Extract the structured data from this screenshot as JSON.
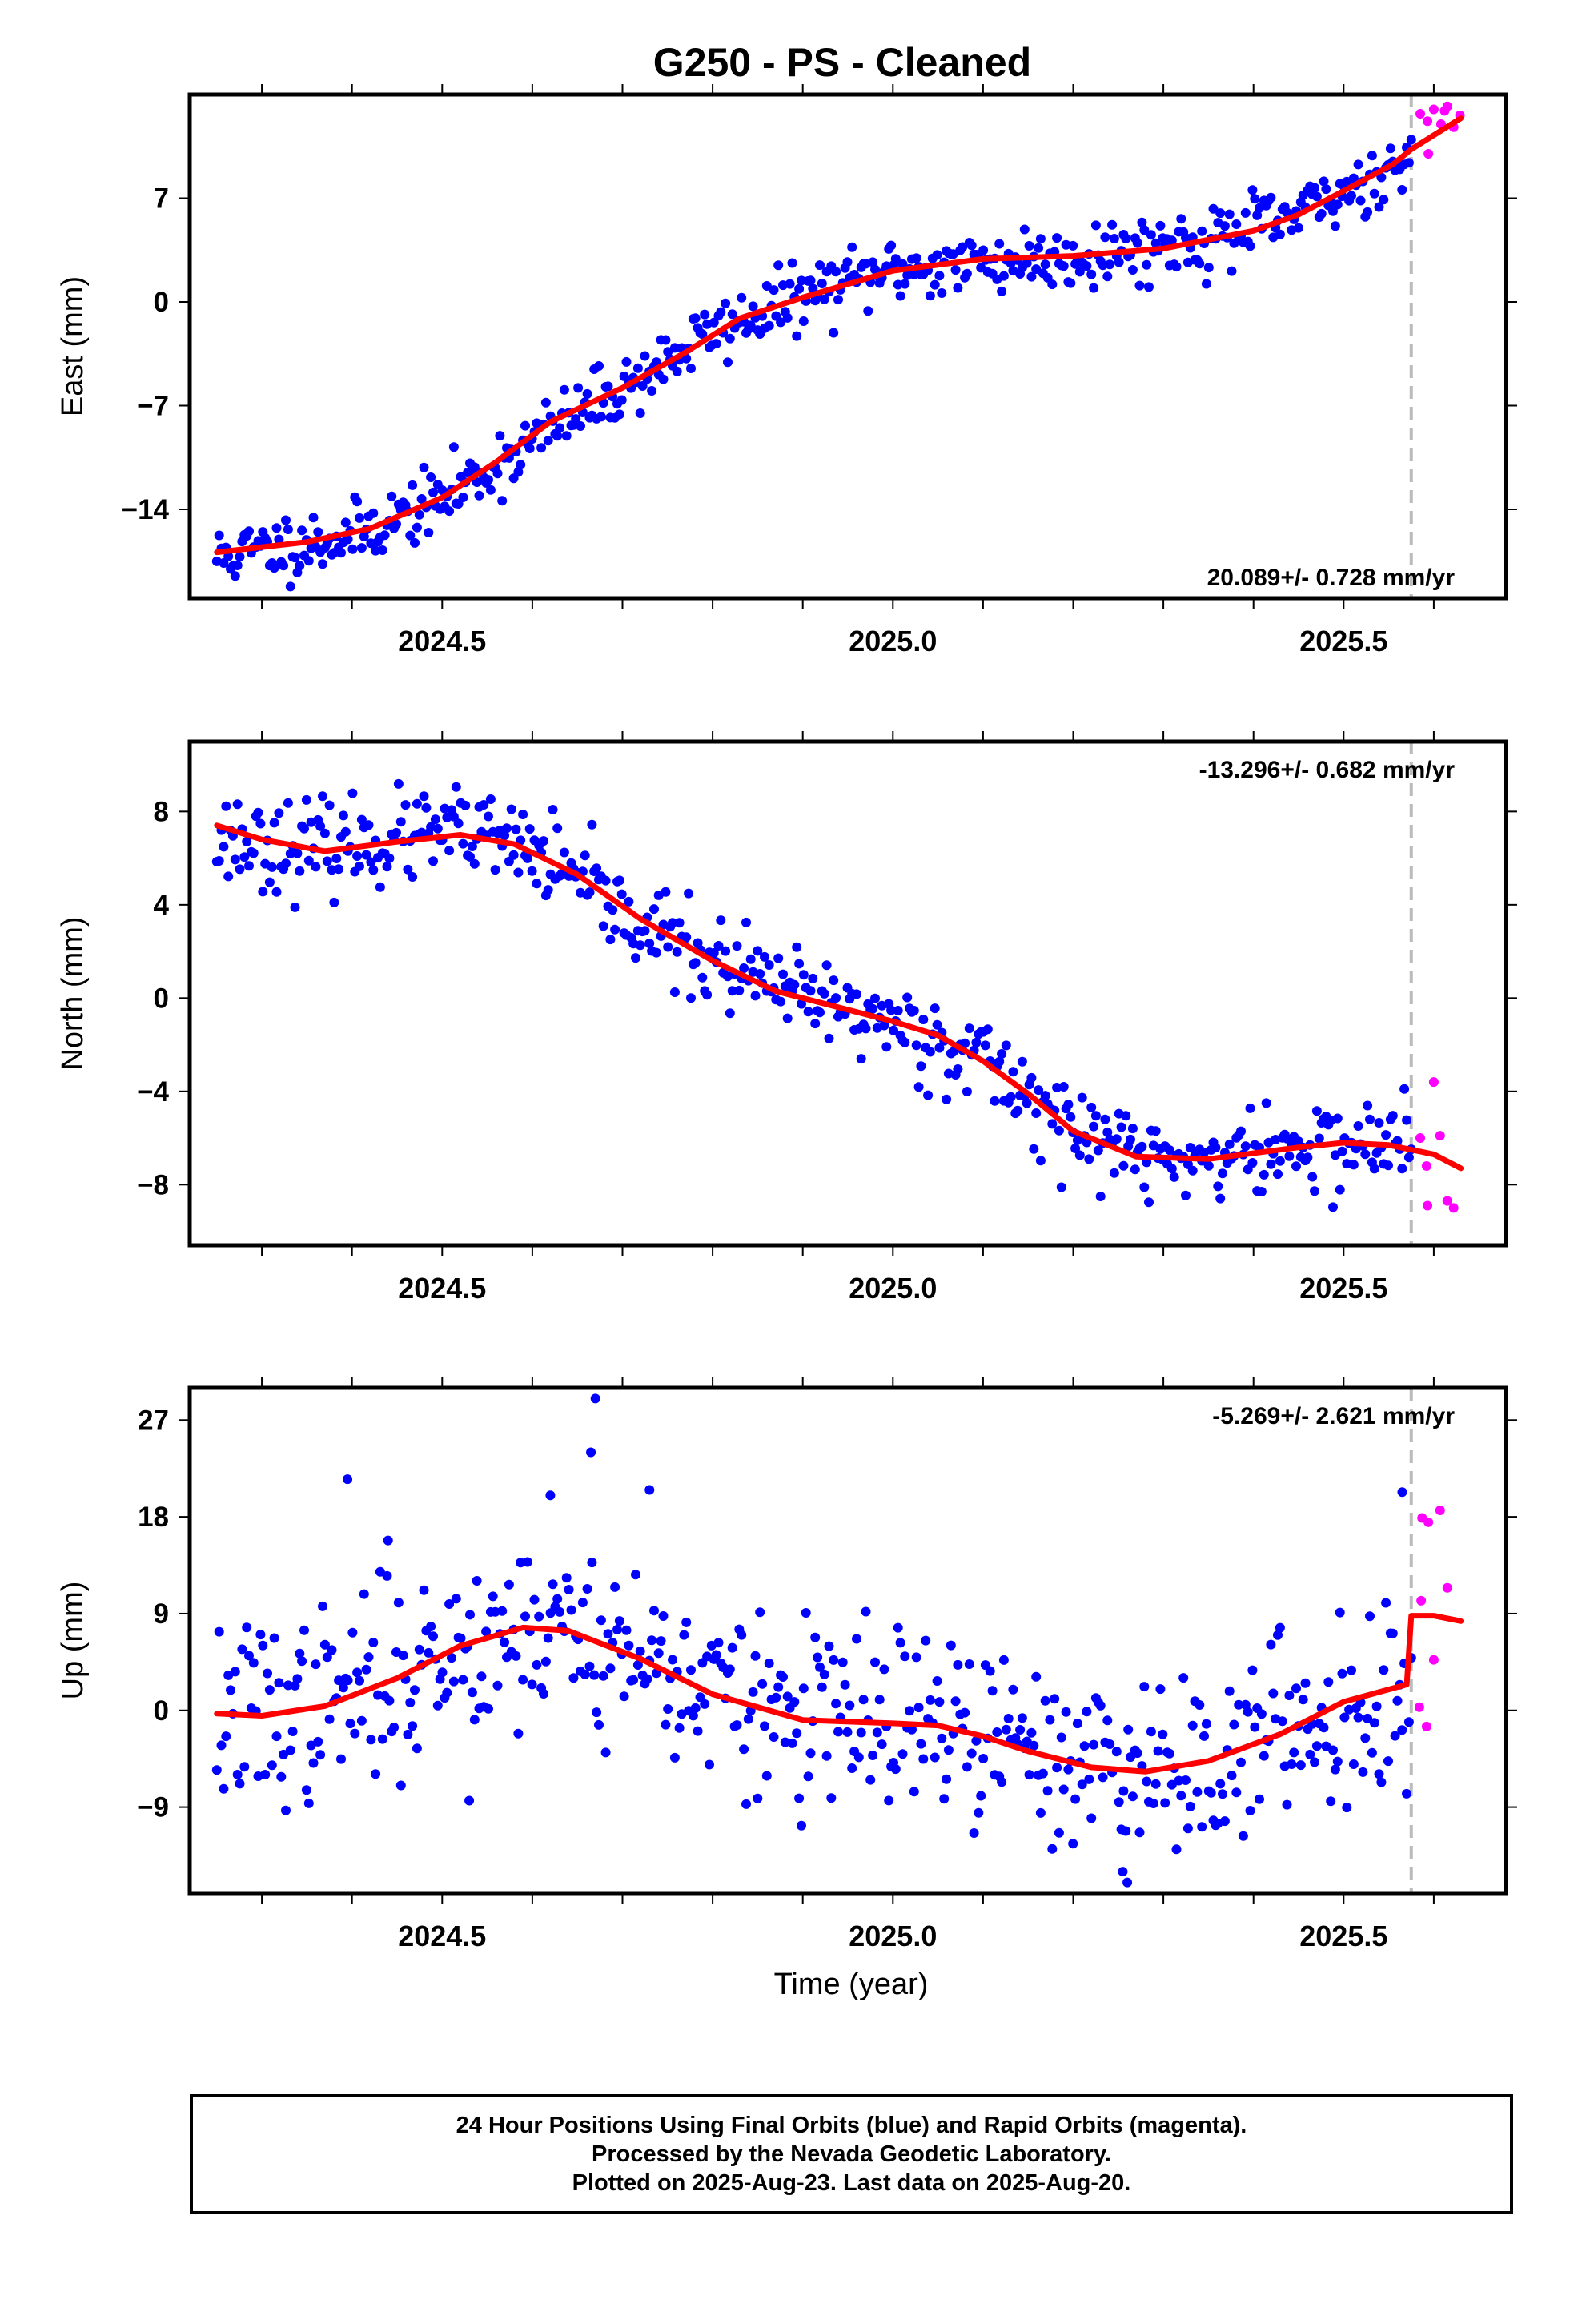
{
  "title": "G250  - PS - Cleaned",
  "xlabel": "Time (year)",
  "x_tick_labels": [
    "2024.5",
    "2025.0",
    "2025.5"
  ],
  "colors": {
    "final": "#0000ff",
    "rapid": "#ff00ff",
    "model": "#ff0000",
    "marker_line": "#bbbbbb"
  },
  "caption": [
    "24 Hour Positions Using Final Orbits (blue) and Rapid Orbits (magenta).",
    "Processed by the Nevada Geodetic Laboratory.",
    "Plotted on 2025-Aug-23. Last data on 2025-Aug-20."
  ],
  "chart_data": [
    {
      "type": "scatter",
      "ylabel": "East (mm)",
      "rate_label": "20.089+/- 0.728 mm/yr",
      "rate_position": "bottom-right",
      "xlim": [
        2024.22,
        2025.68
      ],
      "ylim": [
        -20.0,
        14.0
      ],
      "yticks": [
        -14,
        -7,
        0,
        7
      ],
      "marker_x": 2025.575,
      "model_line": [
        [
          2024.25,
          -16.9
        ],
        [
          2024.35,
          -16.2
        ],
        [
          2024.42,
          -15.3
        ],
        [
          2024.5,
          -13.2
        ],
        [
          2024.56,
          -10.8
        ],
        [
          2024.62,
          -8.1
        ],
        [
          2024.7,
          -5.8
        ],
        [
          2024.77,
          -3.4
        ],
        [
          2024.83,
          -1.1
        ],
        [
          2024.9,
          0.3
        ],
        [
          2025.0,
          2.1
        ],
        [
          2025.1,
          2.9
        ],
        [
          2025.2,
          3.1
        ],
        [
          2025.3,
          3.6
        ],
        [
          2025.4,
          4.8
        ],
        [
          2025.45,
          5.9
        ],
        [
          2025.5,
          7.5
        ],
        [
          2025.555,
          9.3
        ],
        [
          2025.575,
          10.3
        ],
        [
          2025.63,
          12.4
        ]
      ],
      "final_trend": [
        [
          2024.25,
          -17.2
        ],
        [
          2024.4,
          -15.8
        ],
        [
          2024.5,
          -13.3
        ],
        [
          2024.6,
          -9.4
        ],
        [
          2024.7,
          -5.8
        ],
        [
          2024.8,
          -2.0
        ],
        [
          2024.9,
          0.4
        ],
        [
          2025.0,
          2.2
        ],
        [
          2025.2,
          3.1
        ],
        [
          2025.35,
          4.2
        ],
        [
          2025.45,
          5.8
        ],
        [
          2025.575,
          9.8
        ]
      ],
      "final_n": 520,
      "final_noise": 1.1,
      "final_seed": 11,
      "rapid_points": [
        [
          2025.585,
          12.7
        ],
        [
          2025.593,
          12.2
        ],
        [
          2025.6,
          13.0
        ],
        [
          2025.608,
          12.0
        ],
        [
          2025.615,
          13.2
        ],
        [
          2025.622,
          11.8
        ],
        [
          2025.629,
          12.6
        ],
        [
          2025.594,
          10.0
        ],
        [
          2025.612,
          12.9
        ]
      ]
    },
    {
      "type": "scatter",
      "ylabel": "North (mm)",
      "rate_label": "-13.296+/- 0.682 mm/yr",
      "rate_position": "top-right",
      "xlim": [
        2024.22,
        2025.68
      ],
      "ylim": [
        -10.6,
        11.0
      ],
      "yticks": [
        -8,
        -4,
        0,
        4,
        8
      ],
      "marker_x": 2025.575,
      "model_line": [
        [
          2024.25,
          7.4
        ],
        [
          2024.3,
          6.8
        ],
        [
          2024.37,
          6.3
        ],
        [
          2024.45,
          6.7
        ],
        [
          2024.52,
          7.0
        ],
        [
          2024.58,
          6.6
        ],
        [
          2024.65,
          5.3
        ],
        [
          2024.72,
          3.4
        ],
        [
          2024.8,
          1.6
        ],
        [
          2024.87,
          0.3
        ],
        [
          2024.95,
          -0.5
        ],
        [
          2025.0,
          -1.0
        ],
        [
          2025.05,
          -1.6
        ],
        [
          2025.1,
          -2.7
        ],
        [
          2025.15,
          -4.1
        ],
        [
          2025.2,
          -5.7
        ],
        [
          2025.27,
          -6.8
        ],
        [
          2025.35,
          -6.9
        ],
        [
          2025.45,
          -6.4
        ],
        [
          2025.5,
          -6.2
        ],
        [
          2025.55,
          -6.3
        ],
        [
          2025.6,
          -6.7
        ],
        [
          2025.63,
          -7.3
        ]
      ],
      "final_trend": [
        [
          2024.25,
          6.9
        ],
        [
          2024.35,
          6.4
        ],
        [
          2024.45,
          6.8
        ],
        [
          2024.52,
          7.1
        ],
        [
          2024.6,
          6.3
        ],
        [
          2024.7,
          3.6
        ],
        [
          2024.8,
          1.5
        ],
        [
          2024.9,
          0.0
        ],
        [
          2025.0,
          -1.0
        ],
        [
          2025.1,
          -2.6
        ],
        [
          2025.2,
          -5.7
        ],
        [
          2025.3,
          -7.0
        ],
        [
          2025.4,
          -6.7
        ],
        [
          2025.5,
          -6.3
        ],
        [
          2025.575,
          -6.2
        ]
      ],
      "final_n": 520,
      "final_noise": 0.95,
      "final_seed": 23,
      "rapid_points": [
        [
          2025.585,
          -6.0
        ],
        [
          2025.593,
          -8.9
        ],
        [
          2025.6,
          -3.6
        ],
        [
          2025.607,
          -5.9
        ],
        [
          2025.615,
          -8.7
        ],
        [
          2025.622,
          -9.0
        ],
        [
          2025.592,
          -7.2
        ]
      ]
    },
    {
      "type": "scatter",
      "ylabel": "Up (mm)",
      "rate_label": "-5.269+/- 2.621 mm/yr",
      "rate_position": "top-right",
      "xlim": [
        2024.22,
        2025.68
      ],
      "ylim": [
        -17.0,
        30.0
      ],
      "yticks": [
        -9,
        0,
        9,
        18,
        27
      ],
      "marker_x": 2025.575,
      "model_line": [
        [
          2024.25,
          -0.3
        ],
        [
          2024.3,
          -0.5
        ],
        [
          2024.37,
          0.4
        ],
        [
          2024.45,
          3.0
        ],
        [
          2024.52,
          6.0
        ],
        [
          2024.59,
          7.7
        ],
        [
          2024.64,
          7.4
        ],
        [
          2024.72,
          4.8
        ],
        [
          2024.8,
          1.5
        ],
        [
          2024.9,
          -0.9
        ],
        [
          2025.0,
          -1.2
        ],
        [
          2025.05,
          -1.4
        ],
        [
          2025.1,
          -2.4
        ],
        [
          2025.15,
          -3.8
        ],
        [
          2025.22,
          -5.3
        ],
        [
          2025.28,
          -5.7
        ],
        [
          2025.35,
          -4.7
        ],
        [
          2025.43,
          -2.2
        ],
        [
          2025.5,
          0.8
        ],
        [
          2025.57,
          2.4
        ],
        [
          2025.575,
          8.8
        ],
        [
          2025.6,
          8.8
        ],
        [
          2025.63,
          8.3
        ]
      ],
      "final_trend": [
        [
          2024.25,
          -0.8
        ],
        [
          2024.35,
          0.0
        ],
        [
          2024.45,
          3.0
        ],
        [
          2024.55,
          7.2
        ],
        [
          2024.65,
          7.5
        ],
        [
          2024.75,
          3.8
        ],
        [
          2024.85,
          0.0
        ],
        [
          2024.95,
          -1.0
        ],
        [
          2025.05,
          -1.6
        ],
        [
          2025.15,
          -3.6
        ],
        [
          2025.25,
          -5.6
        ],
        [
          2025.35,
          -4.8
        ],
        [
          2025.45,
          -1.4
        ],
        [
          2025.575,
          2.2
        ]
      ],
      "final_n": 520,
      "final_noise": 4.3,
      "final_seed": 37,
      "final_extra": [
        [
          2024.67,
          29.0
        ],
        [
          2024.665,
          24.0
        ],
        [
          2024.395,
          21.5
        ],
        [
          2024.44,
          15.8
        ],
        [
          2025.565,
          20.3
        ],
        [
          2025.255,
          -15.0
        ],
        [
          2025.26,
          -16.0
        ],
        [
          2024.53,
          -8.4
        ],
        [
          2024.62,
          20.0
        ],
        [
          2024.73,
          20.5
        ]
      ],
      "rapid_points": [
        [
          2025.587,
          17.9
        ],
        [
          2025.594,
          17.5
        ],
        [
          2025.607,
          18.6
        ],
        [
          2025.615,
          11.4
        ],
        [
          2025.586,
          10.2
        ],
        [
          2025.6,
          4.7
        ],
        [
          2025.584,
          0.3
        ],
        [
          2025.592,
          -1.5
        ]
      ]
    }
  ]
}
